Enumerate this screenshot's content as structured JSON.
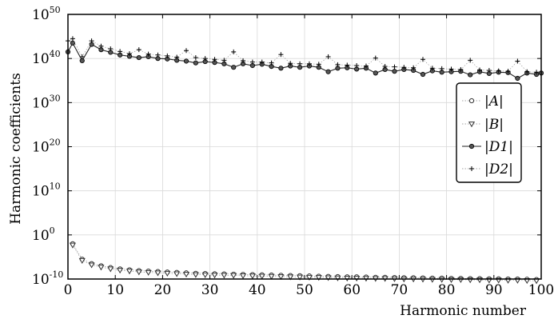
{
  "chart_data": {
    "type": "scatter",
    "xlabel": "Harmonic number",
    "ylabel": "Harmonic coefficients",
    "x_ticks": [
      0,
      10,
      20,
      30,
      40,
      50,
      60,
      70,
      80,
      90,
      100
    ],
    "y_ticks": [
      {
        "base": "10",
        "exp": "50"
      },
      {
        "base": "10",
        "exp": "40"
      },
      {
        "base": "10",
        "exp": "30"
      },
      {
        "base": "10",
        "exp": "20"
      },
      {
        "base": "10",
        "exp": "10"
      },
      {
        "base": "10",
        "exp": "0"
      },
      {
        "base": "10",
        "exp": "-10"
      }
    ],
    "xlim": [
      0,
      100
    ],
    "ylim_log10": [
      -10,
      50
    ],
    "yscale": "log",
    "grid": true,
    "legend_position": "center-right",
    "series": [
      {
        "name": "|A|",
        "marker": "circle-open",
        "x": [
          1,
          3,
          5,
          7,
          9,
          11,
          13,
          15,
          17,
          19,
          21,
          23,
          25,
          27,
          29,
          31,
          33,
          35,
          37,
          39,
          41,
          43,
          45,
          47,
          49,
          51,
          53,
          55,
          57,
          59,
          61,
          63,
          65,
          67,
          69,
          71,
          73,
          75,
          77,
          79,
          81,
          83,
          85,
          87,
          89,
          91,
          93,
          95,
          97,
          99
        ],
        "log10_values": [
          -2.0,
          -5.5,
          -6.5,
          -7.0,
          -7.4,
          -7.7,
          -7.9,
          -8.1,
          -8.2,
          -8.3,
          -8.4,
          -8.5,
          -8.6,
          -8.7,
          -8.75,
          -8.8,
          -8.85,
          -8.9,
          -8.95,
          -9.0,
          -9.05,
          -9.1,
          -9.15,
          -9.2,
          -9.25,
          -9.3,
          -9.35,
          -9.4,
          -9.45,
          -9.5,
          -9.5,
          -9.55,
          -9.6,
          -9.6,
          -9.65,
          -9.7,
          -9.7,
          -9.75,
          -9.8,
          -9.8,
          -9.85,
          -9.85,
          -9.9,
          -9.9,
          -9.95,
          -9.95,
          -10.0,
          -10.0,
          -10.05,
          -10.1
        ]
      },
      {
        "name": "|B|",
        "marker": "triangle-down-open",
        "x": [
          1,
          3,
          5,
          7,
          9,
          11,
          13,
          15,
          17,
          19,
          21,
          23,
          25,
          27,
          29,
          31,
          33,
          35,
          37,
          39,
          41,
          43,
          45,
          47,
          49,
          51,
          53,
          55,
          57,
          59,
          61,
          63,
          65,
          67,
          69,
          71,
          73,
          75,
          77,
          79,
          81,
          83,
          85,
          87,
          89,
          91,
          93,
          95,
          97,
          99
        ],
        "log10_values": [
          -2.3,
          -5.8,
          -6.8,
          -7.3,
          -7.7,
          -8.0,
          -8.2,
          -8.4,
          -8.5,
          -8.6,
          -8.7,
          -8.8,
          -8.9,
          -9.0,
          -9.05,
          -9.1,
          -9.15,
          -9.2,
          -9.25,
          -9.3,
          -9.35,
          -9.4,
          -9.45,
          -9.5,
          -9.55,
          -9.6,
          -9.65,
          -9.7,
          -9.75,
          -9.8,
          -9.8,
          -9.85,
          -9.9,
          -9.9,
          -9.95,
          -10.0,
          -10.0,
          -10.05,
          -10.1,
          -10.1,
          -10.15,
          -10.15,
          -10.2,
          -10.2,
          -10.25,
          -10.25,
          -10.3,
          -10.3,
          -10.35,
          -10.4
        ]
      },
      {
        "name": "|D1|",
        "marker": "circle-filled-line",
        "x": [
          0,
          1,
          3,
          5,
          7,
          9,
          11,
          13,
          15,
          17,
          19,
          21,
          23,
          25,
          27,
          29,
          31,
          33,
          35,
          37,
          39,
          41,
          43,
          45,
          47,
          49,
          51,
          53,
          55,
          57,
          59,
          61,
          63,
          65,
          67,
          69,
          71,
          73,
          75,
          77,
          79,
          81,
          83,
          85,
          87,
          89,
          91,
          93,
          95,
          97,
          99,
          100
        ],
        "log10_values": [
          41.5,
          43.5,
          39.5,
          43.2,
          42.0,
          41.4,
          40.8,
          40.5,
          40.2,
          40.4,
          40.0,
          39.9,
          39.6,
          39.4,
          39.0,
          39.3,
          39.1,
          38.8,
          38.0,
          38.8,
          38.4,
          38.7,
          38.2,
          37.8,
          38.3,
          38.0,
          38.3,
          38.0,
          37.0,
          37.8,
          37.9,
          37.6,
          37.8,
          36.7,
          37.5,
          37.1,
          37.5,
          37.3,
          36.4,
          37.2,
          36.9,
          37.0,
          37.1,
          36.3,
          37.0,
          36.6,
          36.9,
          36.8,
          35.5,
          36.7,
          36.4,
          36.7
        ]
      },
      {
        "name": "|D2|",
        "marker": "plus",
        "x": [
          0,
          1,
          3,
          5,
          7,
          9,
          11,
          13,
          15,
          17,
          19,
          21,
          23,
          25,
          27,
          29,
          31,
          33,
          35,
          37,
          39,
          41,
          43,
          45,
          47,
          49,
          51,
          53,
          55,
          57,
          59,
          61,
          63,
          65,
          67,
          69,
          71,
          73,
          75,
          77,
          79,
          81,
          83,
          85,
          87,
          89,
          91,
          93,
          95,
          97,
          99
        ],
        "log10_values": [
          44.0,
          44.5,
          40.4,
          44.0,
          42.8,
          42.2,
          41.6,
          41.1,
          42.0,
          41.0,
          40.8,
          40.6,
          40.3,
          41.8,
          40.2,
          40.0,
          39.8,
          39.6,
          41.5,
          39.5,
          39.2,
          39.2,
          39.0,
          40.9,
          38.9,
          38.8,
          38.8,
          38.7,
          40.4,
          38.6,
          38.5,
          38.4,
          38.3,
          40.1,
          38.2,
          38.1,
          38.0,
          37.9,
          39.8,
          37.8,
          37.7,
          37.6,
          37.5,
          39.6,
          37.4,
          37.3,
          37.2,
          37.1,
          39.4,
          37.0,
          36.9
        ]
      }
    ]
  }
}
